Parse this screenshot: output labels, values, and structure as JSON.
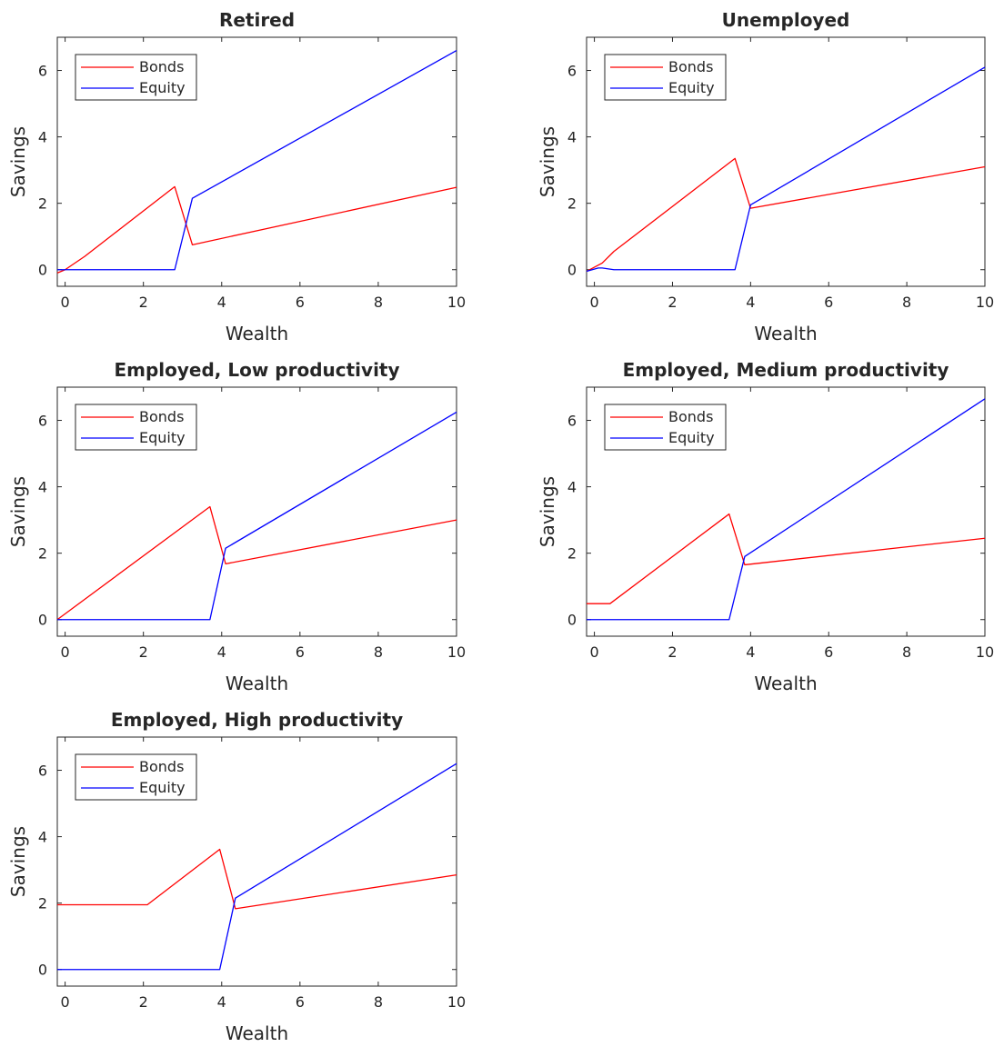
{
  "colors": {
    "bonds": "#ff0000",
    "equity": "#0000ff",
    "axis": "#262626"
  },
  "chart_data": [
    {
      "type": "line",
      "title": "Retired",
      "xlabel": "Wealth",
      "ylabel": "Savings",
      "xlim": [
        -0.2,
        10
      ],
      "ylim": [
        -0.5,
        7
      ],
      "xticks": [
        0,
        2,
        4,
        6,
        8,
        10
      ],
      "yticks": [
        0,
        2,
        4,
        6
      ],
      "legend": "top-left",
      "grid": false,
      "series": [
        {
          "name": "Bonds",
          "color": "#ff0000",
          "x": [
            -0.2,
            0.0,
            0.5,
            2.8,
            3.25,
            10.0
          ],
          "y": [
            -0.1,
            0.0,
            0.4,
            2.5,
            0.75,
            2.48
          ]
        },
        {
          "name": "Equity",
          "color": "#0000ff",
          "x": [
            -0.2,
            2.8,
            3.25,
            10.0
          ],
          "y": [
            0.0,
            0.0,
            2.15,
            6.6
          ]
        }
      ]
    },
    {
      "type": "line",
      "title": "Unemployed",
      "xlabel": "Wealth",
      "ylabel": "Savings",
      "xlim": [
        -0.2,
        10
      ],
      "ylim": [
        -0.5,
        7
      ],
      "xticks": [
        0,
        2,
        4,
        6,
        8,
        10
      ],
      "yticks": [
        0,
        2,
        4,
        6
      ],
      "legend": "top-left",
      "grid": false,
      "series": [
        {
          "name": "Bonds",
          "color": "#ff0000",
          "x": [
            -0.2,
            0.2,
            0.5,
            3.6,
            4.0,
            10.0
          ],
          "y": [
            -0.05,
            0.2,
            0.55,
            3.35,
            1.85,
            3.1
          ]
        },
        {
          "name": "Equity",
          "color": "#0000ff",
          "x": [
            -0.2,
            0.1,
            0.2,
            0.5,
            3.6,
            4.0,
            10.0
          ],
          "y": [
            -0.05,
            0.05,
            0.05,
            0.0,
            0.0,
            1.95,
            6.1
          ]
        }
      ]
    },
    {
      "type": "line",
      "title": "Employed, Low productivity",
      "xlabel": "Wealth",
      "ylabel": "Savings",
      "xlim": [
        -0.2,
        10
      ],
      "ylim": [
        -0.5,
        7
      ],
      "xticks": [
        0,
        2,
        4,
        6,
        8,
        10
      ],
      "yticks": [
        0,
        2,
        4,
        6
      ],
      "legend": "top-left",
      "grid": false,
      "series": [
        {
          "name": "Bonds",
          "color": "#ff0000",
          "x": [
            -0.2,
            3.7,
            4.1,
            10.0
          ],
          "y": [
            0.0,
            3.4,
            1.68,
            3.0
          ]
        },
        {
          "name": "Equity",
          "color": "#0000ff",
          "x": [
            -0.2,
            3.7,
            4.1,
            10.0
          ],
          "y": [
            0.0,
            0.0,
            2.15,
            6.25
          ]
        }
      ]
    },
    {
      "type": "line",
      "title": "Employed, Medium productivity",
      "xlabel": "Wealth",
      "ylabel": "Savings",
      "xlim": [
        -0.2,
        10
      ],
      "ylim": [
        -0.5,
        7
      ],
      "xticks": [
        0,
        2,
        4,
        6,
        8,
        10
      ],
      "yticks": [
        0,
        2,
        4,
        6
      ],
      "legend": "top-left",
      "grid": false,
      "series": [
        {
          "name": "Bonds",
          "color": "#ff0000",
          "x": [
            -0.2,
            0.4,
            3.45,
            3.85,
            10.0
          ],
          "y": [
            0.48,
            0.48,
            3.18,
            1.65,
            2.45
          ]
        },
        {
          "name": "Equity",
          "color": "#0000ff",
          "x": [
            -0.2,
            3.45,
            3.85,
            10.0
          ],
          "y": [
            0.0,
            0.0,
            1.9,
            6.65
          ]
        }
      ]
    },
    {
      "type": "line",
      "title": "Employed, High productivity",
      "xlabel": "Wealth",
      "ylabel": "Savings",
      "xlim": [
        -0.2,
        10
      ],
      "ylim": [
        -0.5,
        7
      ],
      "xticks": [
        0,
        2,
        4,
        6,
        8,
        10
      ],
      "yticks": [
        0,
        2,
        4,
        6
      ],
      "legend": "top-left",
      "grid": false,
      "series": [
        {
          "name": "Bonds",
          "color": "#ff0000",
          "x": [
            -0.2,
            2.1,
            3.95,
            4.35,
            10.0
          ],
          "y": [
            1.95,
            1.95,
            3.62,
            1.83,
            2.85
          ]
        },
        {
          "name": "Equity",
          "color": "#0000ff",
          "x": [
            -0.2,
            3.95,
            4.35,
            10.0
          ],
          "y": [
            0.0,
            0.0,
            2.15,
            6.2
          ]
        }
      ]
    }
  ]
}
